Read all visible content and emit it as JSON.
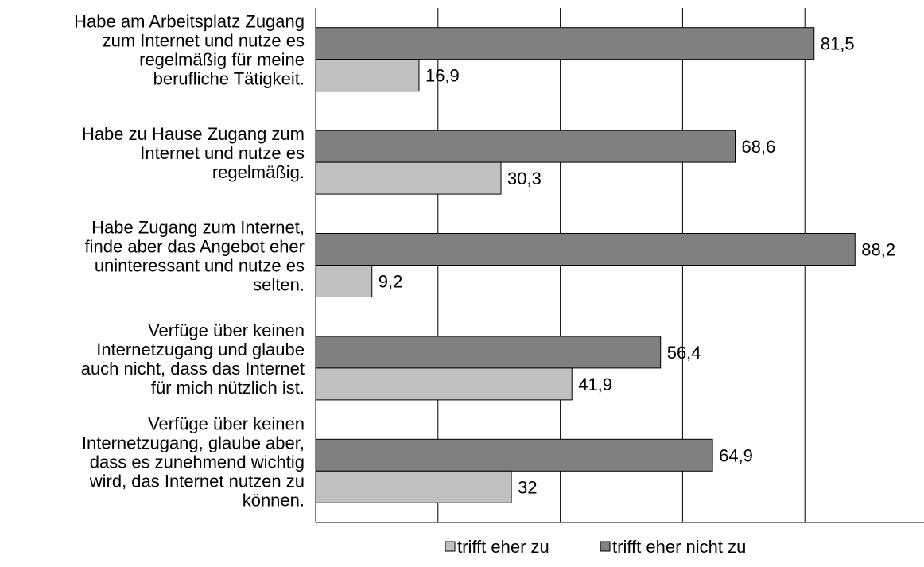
{
  "chart_data": {
    "type": "hbar",
    "categories": [
      "Habe am Arbeitsplatz Zugang\nzum Internet und nutze es\nregelmäßig für meine\nberufliche Tätigkeit.",
      "Habe zu Hause Zugang zum\nInternet und nutze es\nregelmäßig.",
      "Habe Zugang zum Internet,\nfinde aber das Angebot eher\nuninteressant und nutze es\nselten.",
      "Verfüge über keinen\nInternetzugang und glaube\nauch nicht, dass das Internet\nfür mich nützlich ist.",
      "Verfüge über keinen\nInternetzugang, glaube aber,\ndass es zunehmend wichtig\nwird, das Internet nutzen zu\nkönnen."
    ],
    "series": [
      {
        "name": "trifft eher zu",
        "color": "#c0c0c0",
        "values": [
          16.9,
          30.3,
          9.2,
          41.9,
          32
        ],
        "value_labels": [
          "16,9",
          "30,3",
          "9,2",
          "41,9",
          "32"
        ]
      },
      {
        "name": "trifft eher nicht zu",
        "color": "#808080",
        "values": [
          81.5,
          68.6,
          88.2,
          56.4,
          64.9
        ],
        "value_labels": [
          "81,5",
          "68,6",
          "88,2",
          "56,4",
          "64,9"
        ]
      }
    ],
    "xlim": [
      0,
      100
    ],
    "xticks": [
      0,
      20,
      40,
      60,
      80,
      100
    ],
    "grid": true,
    "legend": "bottom"
  }
}
